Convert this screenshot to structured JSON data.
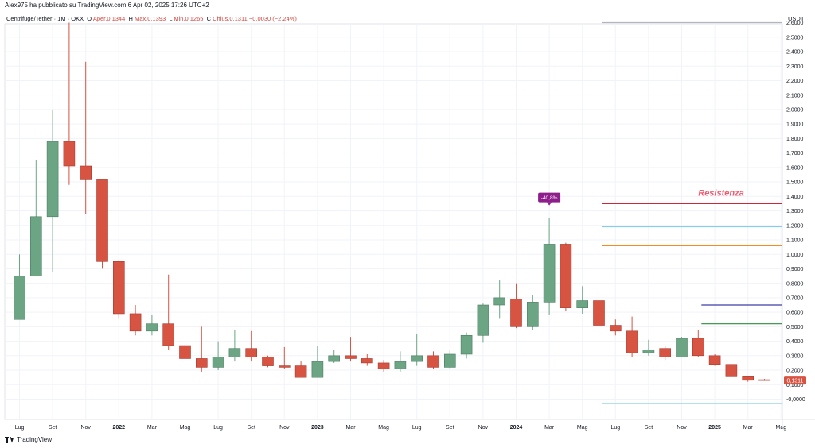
{
  "header": {
    "published": "Alex975 ha pubblicato su TradingView.com 6 Apr 02, 2025 17:26 UTC+2"
  },
  "legend": {
    "symbol": "Centrifuge/Tether · 1M · OKX",
    "o_key": "O",
    "open": "Aper.0,1344",
    "h_key": "H",
    "high": "Max.0,1393",
    "l_key": "L",
    "low": "Min.0,1265",
    "c_key": "C",
    "close": "Chius.0,1311",
    "change": "−0,0030 (−2,24%)"
  },
  "footer": {
    "brand": "TradingView"
  },
  "colors": {
    "up": "#6ba583",
    "down": "#d75442",
    "grid": "#f0f3fa",
    "resistance": "#d0263b",
    "annotation_text": "#ef5b6e",
    "badge": "#8e1e8a",
    "price_tag": "#d75442"
  },
  "chart_data": {
    "type": "candlestick",
    "title": "Centrifuge/Tether · 1M · OKX",
    "currency": "USDT",
    "ylim": [
      -0.05,
      2.65
    ],
    "y_ticks": [
      "-0,0000",
      "0,1000",
      "0,2000",
      "0,3000",
      "0,4000",
      "0,5000",
      "0,6000",
      "0,7000",
      "0,8000",
      "0,9000",
      "1,0000",
      "1,1000",
      "1,2000",
      "1,3000",
      "1,4000",
      "1,5000",
      "1,6000",
      "1,7000",
      "1,8000",
      "1,9000",
      "2,0000",
      "2,1000",
      "2,2000",
      "2,3000",
      "2,4000",
      "2,5000",
      "2,6000"
    ],
    "x_ticks": [
      {
        "i": 0,
        "label": "Lug"
      },
      {
        "i": 2,
        "label": "Set"
      },
      {
        "i": 4,
        "label": "Nov"
      },
      {
        "i": 6,
        "label": "2022",
        "bold": true
      },
      {
        "i": 8,
        "label": "Mar"
      },
      {
        "i": 10,
        "label": "Mag"
      },
      {
        "i": 12,
        "label": "Lug"
      },
      {
        "i": 14,
        "label": "Set"
      },
      {
        "i": 16,
        "label": "Nov"
      },
      {
        "i": 18,
        "label": "2023",
        "bold": true
      },
      {
        "i": 20,
        "label": "Mar"
      },
      {
        "i": 22,
        "label": "Mag"
      },
      {
        "i": 24,
        "label": "Lug"
      },
      {
        "i": 26,
        "label": "Set"
      },
      {
        "i": 28,
        "label": "Nov"
      },
      {
        "i": 30,
        "label": "2024",
        "bold": true
      },
      {
        "i": 32,
        "label": "Mar"
      },
      {
        "i": 34,
        "label": "Mag"
      },
      {
        "i": 36,
        "label": "Lug"
      },
      {
        "i": 38,
        "label": "Set"
      },
      {
        "i": 40,
        "label": "Nov"
      },
      {
        "i": 42,
        "label": "2025",
        "bold": true
      },
      {
        "i": 44,
        "label": "Mar"
      },
      {
        "i": 46,
        "label": "Mag"
      }
    ],
    "candles": [
      {
        "o": 0.55,
        "h": 1.0,
        "l": 0.55,
        "c": 0.85
      },
      {
        "o": 0.85,
        "h": 1.65,
        "l": 0.85,
        "c": 1.26
      },
      {
        "o": 1.26,
        "h": 2.0,
        "l": 0.88,
        "c": 1.78
      },
      {
        "o": 1.78,
        "h": 2.6,
        "l": 1.48,
        "c": 1.61
      },
      {
        "o": 1.61,
        "h": 2.33,
        "l": 1.28,
        "c": 1.52
      },
      {
        "o": 1.52,
        "h": 1.52,
        "l": 0.9,
        "c": 0.95
      },
      {
        "o": 0.95,
        "h": 0.96,
        "l": 0.56,
        "c": 0.59
      },
      {
        "o": 0.59,
        "h": 0.65,
        "l": 0.44,
        "c": 0.47
      },
      {
        "o": 0.47,
        "h": 0.58,
        "l": 0.44,
        "c": 0.52
      },
      {
        "o": 0.52,
        "h": 0.86,
        "l": 0.34,
        "c": 0.37
      },
      {
        "o": 0.37,
        "h": 0.47,
        "l": 0.17,
        "c": 0.28
      },
      {
        "o": 0.28,
        "h": 0.5,
        "l": 0.19,
        "c": 0.22
      },
      {
        "o": 0.22,
        "h": 0.4,
        "l": 0.2,
        "c": 0.29
      },
      {
        "o": 0.29,
        "h": 0.48,
        "l": 0.26,
        "c": 0.35
      },
      {
        "o": 0.35,
        "h": 0.47,
        "l": 0.26,
        "c": 0.29
      },
      {
        "o": 0.29,
        "h": 0.3,
        "l": 0.22,
        "c": 0.23
      },
      {
        "o": 0.23,
        "h": 0.36,
        "l": 0.21,
        "c": 0.22
      },
      {
        "o": 0.23,
        "h": 0.26,
        "l": 0.15,
        "c": 0.15
      },
      {
        "o": 0.15,
        "h": 0.37,
        "l": 0.15,
        "c": 0.26
      },
      {
        "o": 0.26,
        "h": 0.34,
        "l": 0.25,
        "c": 0.3
      },
      {
        "o": 0.3,
        "h": 0.43,
        "l": 0.26,
        "c": 0.28
      },
      {
        "o": 0.28,
        "h": 0.31,
        "l": 0.23,
        "c": 0.25
      },
      {
        "o": 0.25,
        "h": 0.27,
        "l": 0.19,
        "c": 0.21
      },
      {
        "o": 0.21,
        "h": 0.33,
        "l": 0.19,
        "c": 0.26
      },
      {
        "o": 0.26,
        "h": 0.45,
        "l": 0.23,
        "c": 0.3
      },
      {
        "o": 0.3,
        "h": 0.33,
        "l": 0.21,
        "c": 0.22
      },
      {
        "o": 0.22,
        "h": 0.34,
        "l": 0.21,
        "c": 0.31
      },
      {
        "o": 0.31,
        "h": 0.46,
        "l": 0.28,
        "c": 0.44
      },
      {
        "o": 0.44,
        "h": 0.66,
        "l": 0.39,
        "c": 0.65
      },
      {
        "o": 0.65,
        "h": 0.82,
        "l": 0.56,
        "c": 0.7
      },
      {
        "o": 0.69,
        "h": 0.8,
        "l": 0.49,
        "c": 0.5
      },
      {
        "o": 0.5,
        "h": 0.72,
        "l": 0.48,
        "c": 0.67
      },
      {
        "o": 0.67,
        "h": 1.25,
        "l": 0.58,
        "c": 1.07
      },
      {
        "o": 1.07,
        "h": 1.08,
        "l": 0.61,
        "c": 0.63
      },
      {
        "o": 0.63,
        "h": 0.78,
        "l": 0.59,
        "c": 0.68
      },
      {
        "o": 0.68,
        "h": 0.74,
        "l": 0.39,
        "c": 0.51
      },
      {
        "o": 0.51,
        "h": 0.55,
        "l": 0.44,
        "c": 0.47
      },
      {
        "o": 0.47,
        "h": 0.57,
        "l": 0.29,
        "c": 0.32
      },
      {
        "o": 0.32,
        "h": 0.41,
        "l": 0.3,
        "c": 0.34
      },
      {
        "o": 0.35,
        "h": 0.37,
        "l": 0.27,
        "c": 0.29
      },
      {
        "o": 0.29,
        "h": 0.43,
        "l": 0.29,
        "c": 0.42
      },
      {
        "o": 0.42,
        "h": 0.48,
        "l": 0.29,
        "c": 0.3
      },
      {
        "o": 0.3,
        "h": 0.31,
        "l": 0.23,
        "c": 0.24
      },
      {
        "o": 0.24,
        "h": 0.24,
        "l": 0.16,
        "c": 0.16
      },
      {
        "o": 0.16,
        "h": 0.16,
        "l": 0.12,
        "c": 0.13
      },
      {
        "o": 0.134,
        "h": 0.139,
        "l": 0.127,
        "c": 0.131
      }
    ],
    "levels": [
      {
        "name": "",
        "value": 2.6,
        "color": "#b2b5be",
        "from": 35
      },
      {
        "name": "Resistenza",
        "value": 1.35,
        "color": "#d0263b",
        "from": 35
      },
      {
        "name": "",
        "value": 1.19,
        "color": "#87cde8",
        "from": 35
      },
      {
        "name": "",
        "value": 1.06,
        "color": "#f57c00",
        "from": 35
      },
      {
        "name": "",
        "value": 0.65,
        "color": "#3f3fa8",
        "from": 41
      },
      {
        "name": "",
        "value": 0.52,
        "color": "#2e8b3e",
        "from": 41
      },
      {
        "name": "",
        "value": -0.03,
        "color": "#87cde8",
        "from": 35
      }
    ],
    "annotation": {
      "label": "-40,8%",
      "candle": 32,
      "value": 1.25
    },
    "last_price": "0,1311",
    "last_price_value": 0.1311
  }
}
